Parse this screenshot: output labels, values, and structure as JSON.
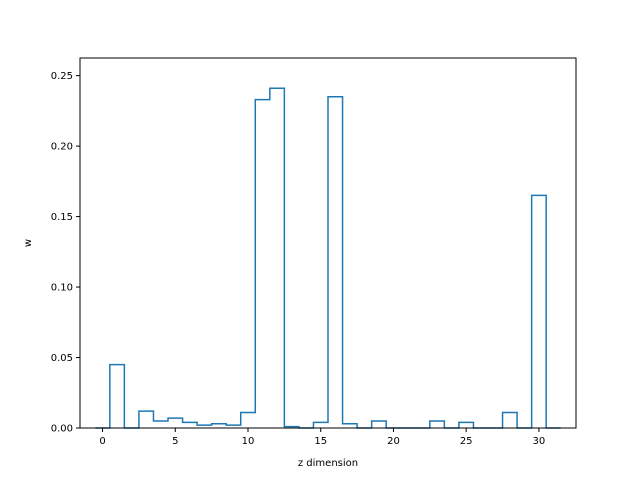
{
  "chart_data": {
    "type": "step",
    "xlabel": "z dimension",
    "ylabel": "w",
    "xlim": [
      -1.55,
      32.55
    ],
    "ylim": [
      0.0,
      0.2625
    ],
    "xticks": [
      0,
      5,
      10,
      15,
      20,
      25,
      30
    ],
    "xtick_labels": [
      "0",
      "5",
      "10",
      "15",
      "20",
      "25",
      "30"
    ],
    "yticks": [
      0.0,
      0.05,
      0.1,
      0.15,
      0.2,
      0.25
    ],
    "ytick_labels": [
      "0.00",
      "0.05",
      "0.10",
      "0.15",
      "0.20",
      "0.25"
    ],
    "grid": false,
    "series": [
      {
        "color": "#1f77b4",
        "x": [
          0,
          1,
          2,
          3,
          4,
          5,
          6,
          7,
          8,
          9,
          10,
          11,
          12,
          13,
          14,
          15,
          16,
          17,
          18,
          19,
          20,
          21,
          22,
          23,
          24,
          25,
          26,
          27,
          28,
          29,
          30,
          31
        ],
        "values": [
          0.0,
          0.045,
          0.0,
          0.012,
          0.005,
          0.007,
          0.004,
          0.002,
          0.003,
          0.002,
          0.011,
          0.233,
          0.241,
          0.001,
          0.0,
          0.004,
          0.235,
          0.003,
          0.0,
          0.005,
          0.0,
          0.0,
          0.0,
          0.005,
          0.0,
          0.004,
          0.0,
          0.0,
          0.011,
          0.0,
          0.165,
          0.0
        ]
      }
    ]
  }
}
